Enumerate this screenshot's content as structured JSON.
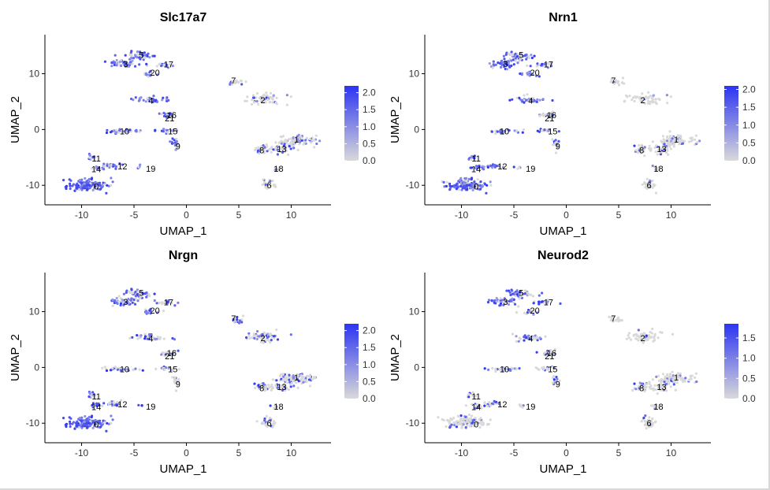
{
  "chart_data": [
    {
      "type": "scatter",
      "title": "Slc17a7",
      "xlabel": "UMAP_1",
      "ylabel": "UMAP_2",
      "xlim": [
        -13.5,
        13.8
      ],
      "ylim": [
        -13.5,
        17
      ],
      "xticks": [
        -10,
        -5,
        0,
        5,
        10
      ],
      "yticks": [
        -10,
        0,
        10
      ],
      "legend": {
        "position": "right",
        "ticks": [
          0.0,
          0.5,
          1.0,
          1.5,
          2.0
        ],
        "max": 2.2
      },
      "color_low": "#d9d9d9",
      "color_high": "#2b34f2",
      "expression": {
        "0": 0.9,
        "1": 0.3,
        "2": 0.15,
        "3": 0.9,
        "4": 0.9,
        "5": 0.8,
        "6": 0.1,
        "7": 0.2,
        "8": 0.35,
        "9": 0.8,
        "10": 0.7,
        "11": 0.8,
        "12": 0.7,
        "13": 0.3,
        "14": 0.8,
        "15": 0.8,
        "16": 0.5,
        "17": 0.8,
        "18": 0.3,
        "19": 0.5,
        "20": 0.8,
        "21": 0.5
      }
    },
    {
      "type": "scatter",
      "title": "Nrn1",
      "xlabel": "UMAP_1",
      "ylabel": "UMAP_2",
      "xlim": [
        -13.5,
        13.8
      ],
      "ylim": [
        -13.5,
        17
      ],
      "xticks": [
        -10,
        -5,
        0,
        5,
        10
      ],
      "yticks": [
        -10,
        0,
        10
      ],
      "legend": {
        "position": "right",
        "ticks": [
          0.0,
          0.5,
          1.0,
          1.5,
          2.0
        ],
        "max": 2.1
      },
      "color_low": "#d9d9d9",
      "color_high": "#2b34f2",
      "expression": {
        "0": 0.85,
        "1": 0.15,
        "2": 0.1,
        "3": 0.8,
        "4": 0.75,
        "5": 0.7,
        "6": 0.1,
        "7": 0.1,
        "8": 0.2,
        "9": 0.4,
        "10": 0.5,
        "11": 0.7,
        "12": 0.6,
        "13": 0.2,
        "14": 0.8,
        "15": 0.5,
        "16": 0.4,
        "17": 0.7,
        "18": 0.2,
        "19": 0.3,
        "20": 0.7,
        "21": 0.4
      }
    },
    {
      "type": "scatter",
      "title": "Nrgn",
      "xlabel": "UMAP_1",
      "ylabel": "UMAP_2",
      "xlim": [
        -13.5,
        13.8
      ],
      "ylim": [
        -13.5,
        17
      ],
      "xticks": [
        -10,
        -5,
        0,
        5,
        10
      ],
      "yticks": [
        -10,
        0,
        10
      ],
      "legend": {
        "position": "right",
        "ticks": [
          0.0,
          0.5,
          1.0,
          1.5,
          2.0
        ],
        "max": 2.2
      },
      "color_low": "#d9d9d9",
      "color_high": "#2b34f2",
      "expression": {
        "0": 0.9,
        "1": 0.4,
        "2": 0.35,
        "3": 0.7,
        "4": 0.6,
        "5": 0.7,
        "6": 0.2,
        "7": 0.5,
        "8": 0.4,
        "9": 0.3,
        "10": 0.5,
        "11": 0.6,
        "12": 0.6,
        "13": 0.35,
        "14": 0.8,
        "15": 0.4,
        "16": 0.5,
        "17": 0.6,
        "18": 0.3,
        "19": 0.4,
        "20": 0.6,
        "21": 0.5
      }
    },
    {
      "type": "scatter",
      "title": "Neurod2",
      "xlabel": "UMAP_1",
      "ylabel": "UMAP_2",
      "xlim": [
        -13.5,
        13.8
      ],
      "ylim": [
        -13.5,
        17
      ],
      "xticks": [
        -10,
        -5,
        0,
        5,
        10
      ],
      "yticks": [
        -10,
        0,
        10
      ],
      "legend": {
        "position": "right",
        "ticks": [
          0.0,
          0.5,
          1.0,
          1.5
        ],
        "max": 1.85
      },
      "color_low": "#d9d9d9",
      "color_high": "#2b34f2",
      "expression": {
        "0": 0.3,
        "1": 0.2,
        "2": 0.1,
        "3": 0.7,
        "4": 0.6,
        "5": 0.6,
        "6": 0.1,
        "7": 0.05,
        "8": 0.15,
        "9": 0.4,
        "10": 0.5,
        "11": 0.3,
        "12": 0.4,
        "13": 0.15,
        "14": 0.3,
        "15": 0.4,
        "16": 0.5,
        "17": 0.6,
        "18": 0.2,
        "19": 0.3,
        "20": 0.6,
        "21": 0.5
      }
    }
  ],
  "clusters": [
    {
      "id": "0",
      "label": "0",
      "x": -9.5,
      "y": -9.8,
      "sx": 1.8,
      "sy": 0.9,
      "n": 130
    },
    {
      "id": "1",
      "label": "1",
      "x": 10.5,
      "y": -2.0,
      "sx": 1.7,
      "sy": 0.9,
      "n": 90
    },
    {
      "id": "2",
      "label": "2",
      "x": 7.5,
      "y": 5.5,
      "sx": 1.6,
      "sy": 0.9,
      "n": 60
    },
    {
      "id": "3",
      "label": "3",
      "x": -6.0,
      "y": 11.8,
      "sx": 1.3,
      "sy": 0.7,
      "n": 45
    },
    {
      "id": "4",
      "label": "4",
      "x": -3.5,
      "y": 5.3,
      "sx": 1.6,
      "sy": 0.6,
      "n": 35
    },
    {
      "id": "5",
      "label": "5",
      "x": -4.5,
      "y": 13.2,
      "sx": 1.3,
      "sy": 0.7,
      "n": 45
    },
    {
      "id": "6",
      "label": "6",
      "x": 7.8,
      "y": -9.8,
      "sx": 0.6,
      "sy": 0.9,
      "n": 30
    },
    {
      "id": "7",
      "label": "7",
      "x": 4.8,
      "y": 8.5,
      "sx": 0.6,
      "sy": 0.5,
      "n": 18
    },
    {
      "id": "8",
      "label": "8",
      "x": 7.2,
      "y": -3.5,
      "sx": 0.7,
      "sy": 0.7,
      "n": 30
    },
    {
      "id": "9",
      "label": "9",
      "x": -1.0,
      "y": -2.5,
      "sx": 0.3,
      "sy": 0.9,
      "n": 18
    },
    {
      "id": "10",
      "label": "10",
      "x": -6.0,
      "y": -0.3,
      "sx": 1.6,
      "sy": 0.3,
      "n": 28
    },
    {
      "id": "11",
      "label": "11",
      "x": -9.0,
      "y": -5.0,
      "sx": 0.4,
      "sy": 0.5,
      "n": 12
    },
    {
      "id": "12",
      "label": "12",
      "x": -7.0,
      "y": -6.5,
      "sx": 0.8,
      "sy": 0.4,
      "n": 18
    },
    {
      "id": "13",
      "label": "13",
      "x": 9.0,
      "y": -3.5,
      "sx": 1.2,
      "sy": 0.8,
      "n": 40
    },
    {
      "id": "14",
      "label": "14",
      "x": -8.5,
      "y": -6.8,
      "sx": 0.7,
      "sy": 0.4,
      "n": 18
    },
    {
      "id": "15",
      "label": "15",
      "x": -2.0,
      "y": -0.2,
      "sx": 0.8,
      "sy": 0.3,
      "n": 16
    },
    {
      "id": "16",
      "label": "16",
      "x": -1.5,
      "y": 2.6,
      "sx": 0.5,
      "sy": 0.4,
      "n": 10
    },
    {
      "id": "17",
      "label": "17",
      "x": -2.2,
      "y": 11.6,
      "sx": 1.0,
      "sy": 0.4,
      "n": 20
    },
    {
      "id": "18",
      "label": "18",
      "x": 8.5,
      "y": -7.0,
      "sx": 0.3,
      "sy": 0.5,
      "n": 8
    },
    {
      "id": "19",
      "label": "19",
      "x": -4.5,
      "y": -6.8,
      "sx": 0.3,
      "sy": 0.3,
      "n": 5
    },
    {
      "id": "20",
      "label": "20",
      "x": -3.5,
      "y": 10.0,
      "sx": 0.8,
      "sy": 0.4,
      "n": 16
    },
    {
      "id": "21",
      "label": "21",
      "x": -2.0,
      "y": 2.6,
      "sx": 0.5,
      "sy": 0.4,
      "n": 8
    }
  ],
  "cluster_labels": [
    {
      "label": "0",
      "x": -8.6,
      "y": -10.2
    },
    {
      "label": "1",
      "x": 10.5,
      "y": -1.8
    },
    {
      "label": "2",
      "x": 7.3,
      "y": 5.3
    },
    {
      "label": "3",
      "x": -5.8,
      "y": 11.8
    },
    {
      "label": "4",
      "x": -3.4,
      "y": 5.2
    },
    {
      "label": "5",
      "x": -4.3,
      "y": 13.4
    },
    {
      "label": "6",
      "x": 7.9,
      "y": -10.0
    },
    {
      "label": "7",
      "x": 4.5,
      "y": 8.8
    },
    {
      "label": "8",
      "x": 7.2,
      "y": -3.7
    },
    {
      "label": "9",
      "x": -0.8,
      "y": -3.0
    },
    {
      "label": "10",
      "x": -5.9,
      "y": -0.3
    },
    {
      "label": "11",
      "x": -8.6,
      "y": -5.2
    },
    {
      "label": "12",
      "x": -6.1,
      "y": -6.6
    },
    {
      "label": "13",
      "x": 9.1,
      "y": -3.5
    },
    {
      "label": "14",
      "x": -8.6,
      "y": -7.1
    },
    {
      "label": "15",
      "x": -1.3,
      "y": -0.3
    },
    {
      "label": "16",
      "x": -1.4,
      "y": 2.6
    },
    {
      "label": "17",
      "x": -1.7,
      "y": 11.7
    },
    {
      "label": "18",
      "x": 8.8,
      "y": -7.0
    },
    {
      "label": "19",
      "x": -3.4,
      "y": -7.0
    },
    {
      "label": "20",
      "x": -3.0,
      "y": 10.2
    },
    {
      "label": "21",
      "x": -1.6,
      "y": 2.0
    }
  ]
}
